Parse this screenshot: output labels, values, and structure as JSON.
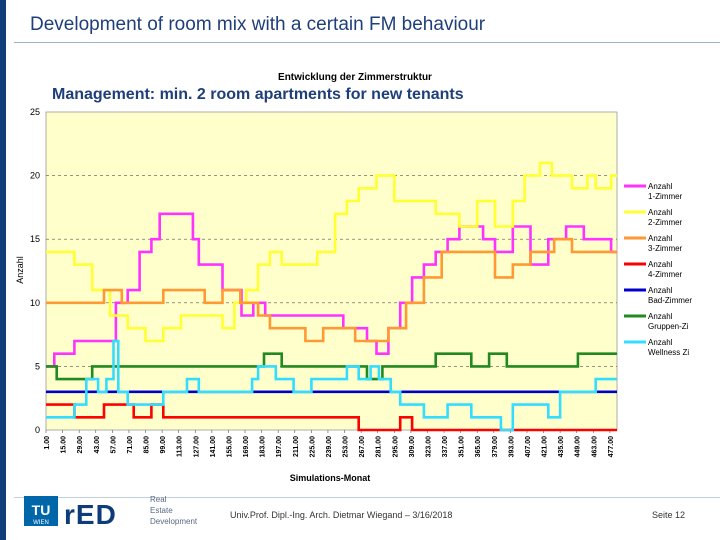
{
  "slide": {
    "title": "Development of room mix with a certain FM behaviour",
    "subtitle": "Management: min. 2 room apartments for new tenants",
    "footer": "Univ.Prof. Dipl.-Ing. Arch. Dietmar Wiegand – 3/16/2018",
    "page": "Seite 12",
    "logo": {
      "tu": "TU",
      "wien": "WIEN",
      "red": "rED",
      "org": [
        "Real",
        "Estate",
        "Development"
      ]
    }
  },
  "chart_data": {
    "type": "line",
    "title": "Entwicklung der Zimmerstruktur",
    "xlabel": "Simulations-Monat",
    "ylabel": "Anzahl",
    "xlim": [
      1,
      483
    ],
    "ylim": [
      0,
      25
    ],
    "yticks": [
      0,
      5,
      10,
      15,
      20,
      25
    ],
    "xticks": [
      "1.00",
      "15.00",
      "29.00",
      "43.00",
      "57.00",
      "71.00",
      "85.00",
      "99.00",
      "113.00",
      "127.00",
      "141.00",
      "155.00",
      "169.00",
      "183.00",
      "197.00",
      "211.00",
      "225.00",
      "239.00",
      "253.00",
      "267.00",
      "281.00",
      "295.00",
      "309.00",
      "323.00",
      "337.00",
      "351.00",
      "365.00",
      "379.00",
      "393.00",
      "407.00",
      "421.00",
      "435.00",
      "449.00",
      "463.00",
      "477.00"
    ],
    "grid": "dashed horizontal",
    "legend_position": "right",
    "series": [
      {
        "name": "Anzahl 1-Zimmer",
        "color": "#ff33ff",
        "points": [
          [
            1,
            5
          ],
          [
            8,
            6
          ],
          [
            25,
            7
          ],
          [
            45,
            7
          ],
          [
            60,
            10
          ],
          [
            70,
            11
          ],
          [
            80,
            14
          ],
          [
            90,
            15
          ],
          [
            97,
            17
          ],
          [
            115,
            17
          ],
          [
            125,
            15
          ],
          [
            130,
            13
          ],
          [
            140,
            13
          ],
          [
            150,
            11
          ],
          [
            158,
            11
          ],
          [
            166,
            9
          ],
          [
            176,
            10
          ],
          [
            186,
            9
          ],
          [
            200,
            9
          ],
          [
            220,
            9
          ],
          [
            240,
            9
          ],
          [
            252,
            8
          ],
          [
            262,
            8
          ],
          [
            272,
            7
          ],
          [
            280,
            6
          ],
          [
            290,
            8
          ],
          [
            300,
            10
          ],
          [
            310,
            12
          ],
          [
            320,
            13
          ],
          [
            330,
            14
          ],
          [
            340,
            15
          ],
          [
            350,
            16
          ],
          [
            370,
            15
          ],
          [
            380,
            14
          ],
          [
            395,
            16
          ],
          [
            410,
            13
          ],
          [
            425,
            15
          ],
          [
            440,
            16
          ],
          [
            455,
            15
          ],
          [
            465,
            15
          ],
          [
            478,
            14
          ]
        ]
      },
      {
        "name": "Anzahl 2-Zimmer",
        "color": "#ffff33",
        "points": [
          [
            1,
            14
          ],
          [
            10,
            14
          ],
          [
            25,
            13
          ],
          [
            40,
            11
          ],
          [
            55,
            9
          ],
          [
            70,
            8
          ],
          [
            85,
            7
          ],
          [
            100,
            8
          ],
          [
            115,
            9
          ],
          [
            130,
            9
          ],
          [
            140,
            9
          ],
          [
            150,
            8
          ],
          [
            160,
            10
          ],
          [
            170,
            11
          ],
          [
            180,
            13
          ],
          [
            190,
            14
          ],
          [
            200,
            13
          ],
          [
            215,
            13
          ],
          [
            230,
            14
          ],
          [
            245,
            17
          ],
          [
            255,
            18
          ],
          [
            265,
            19
          ],
          [
            280,
            20
          ],
          [
            295,
            18
          ],
          [
            310,
            18
          ],
          [
            330,
            17
          ],
          [
            340,
            17
          ],
          [
            350,
            16
          ],
          [
            365,
            18
          ],
          [
            380,
            16
          ],
          [
            395,
            18
          ],
          [
            405,
            20
          ],
          [
            418,
            21
          ],
          [
            428,
            20
          ],
          [
            445,
            19
          ],
          [
            458,
            20
          ],
          [
            465,
            19
          ],
          [
            478,
            20
          ]
        ]
      },
      {
        "name": "Anzahl 3-Zimmer",
        "color": "#ff9933",
        "points": [
          [
            1,
            10
          ],
          [
            30,
            10
          ],
          [
            50,
            11
          ],
          [
            65,
            10
          ],
          [
            80,
            10
          ],
          [
            100,
            11
          ],
          [
            120,
            11
          ],
          [
            135,
            10
          ],
          [
            150,
            11
          ],
          [
            165,
            10
          ],
          [
            180,
            9
          ],
          [
            190,
            8
          ],
          [
            205,
            8
          ],
          [
            220,
            7
          ],
          [
            235,
            8
          ],
          [
            250,
            8
          ],
          [
            262,
            7
          ],
          [
            278,
            7
          ],
          [
            290,
            8
          ],
          [
            305,
            10
          ],
          [
            320,
            12
          ],
          [
            335,
            14
          ],
          [
            350,
            14
          ],
          [
            365,
            14
          ],
          [
            380,
            12
          ],
          [
            395,
            13
          ],
          [
            410,
            14
          ],
          [
            430,
            15
          ],
          [
            445,
            14
          ],
          [
            455,
            14
          ],
          [
            478,
            14
          ]
        ]
      },
      {
        "name": "Anzahl 4-Zimmer",
        "color": "#ff0000",
        "points": [
          [
            1,
            2
          ],
          [
            15,
            2
          ],
          [
            25,
            1
          ],
          [
            50,
            2
          ],
          [
            75,
            1
          ],
          [
            85,
            1
          ],
          [
            90,
            2
          ],
          [
            100,
            1
          ],
          [
            130,
            1
          ],
          [
            160,
            1
          ],
          [
            190,
            1
          ],
          [
            220,
            1
          ],
          [
            250,
            1
          ],
          [
            265,
            0
          ],
          [
            290,
            0
          ],
          [
            300,
            1
          ],
          [
            310,
            0
          ],
          [
            340,
            0
          ],
          [
            370,
            0
          ],
          [
            400,
            0
          ],
          [
            430,
            0
          ],
          [
            460,
            0
          ],
          [
            478,
            0
          ]
        ]
      },
      {
        "name": "Anzahl Bad-Zimmer",
        "color": "#0000cc",
        "points": [
          [
            1,
            3
          ],
          [
            478,
            3
          ]
        ]
      },
      {
        "name": "Anzahl Gruppen-Zi",
        "color": "#228822",
        "points": [
          [
            1,
            5
          ],
          [
            10,
            4
          ],
          [
            30,
            4
          ],
          [
            40,
            5
          ],
          [
            60,
            5
          ],
          [
            80,
            5
          ],
          [
            100,
            5
          ],
          [
            120,
            5
          ],
          [
            140,
            5
          ],
          [
            160,
            5
          ],
          [
            175,
            5
          ],
          [
            185,
            6
          ],
          [
            200,
            5
          ],
          [
            220,
            5
          ],
          [
            240,
            5
          ],
          [
            260,
            5
          ],
          [
            272,
            4
          ],
          [
            285,
            5
          ],
          [
            298,
            5
          ],
          [
            310,
            5
          ],
          [
            320,
            5
          ],
          [
            330,
            6
          ],
          [
            345,
            6
          ],
          [
            360,
            5
          ],
          [
            375,
            6
          ],
          [
            390,
            5
          ],
          [
            405,
            5
          ],
          [
            420,
            5
          ],
          [
            435,
            5
          ],
          [
            450,
            6
          ],
          [
            465,
            6
          ],
          [
            478,
            6
          ]
        ]
      },
      {
        "name": "Anzahl Wellness Zi",
        "color": "#33ddff",
        "points": [
          [
            1,
            1
          ],
          [
            10,
            1
          ],
          [
            25,
            2
          ],
          [
            35,
            4
          ],
          [
            45,
            3
          ],
          [
            52,
            4
          ],
          [
            58,
            7
          ],
          [
            62,
            3
          ],
          [
            70,
            2
          ],
          [
            80,
            2
          ],
          [
            90,
            2
          ],
          [
            100,
            3
          ],
          [
            110,
            3
          ],
          [
            120,
            4
          ],
          [
            130,
            3
          ],
          [
            145,
            3
          ],
          [
            160,
            3
          ],
          [
            175,
            4
          ],
          [
            180,
            5
          ],
          [
            195,
            4
          ],
          [
            210,
            3
          ],
          [
            225,
            4
          ],
          [
            240,
            4
          ],
          [
            255,
            5
          ],
          [
            265,
            4
          ],
          [
            275,
            5
          ],
          [
            282,
            4
          ],
          [
            292,
            3
          ],
          [
            300,
            2
          ],
          [
            310,
            2
          ],
          [
            320,
            1
          ],
          [
            330,
            1
          ],
          [
            340,
            2
          ],
          [
            350,
            2
          ],
          [
            360,
            1
          ],
          [
            370,
            1
          ],
          [
            380,
            1
          ],
          [
            385,
            0
          ],
          [
            395,
            2
          ],
          [
            405,
            2
          ],
          [
            415,
            2
          ],
          [
            425,
            1
          ],
          [
            435,
            3
          ],
          [
            445,
            3
          ],
          [
            455,
            3
          ],
          [
            465,
            4
          ],
          [
            478,
            4
          ]
        ]
      }
    ]
  }
}
